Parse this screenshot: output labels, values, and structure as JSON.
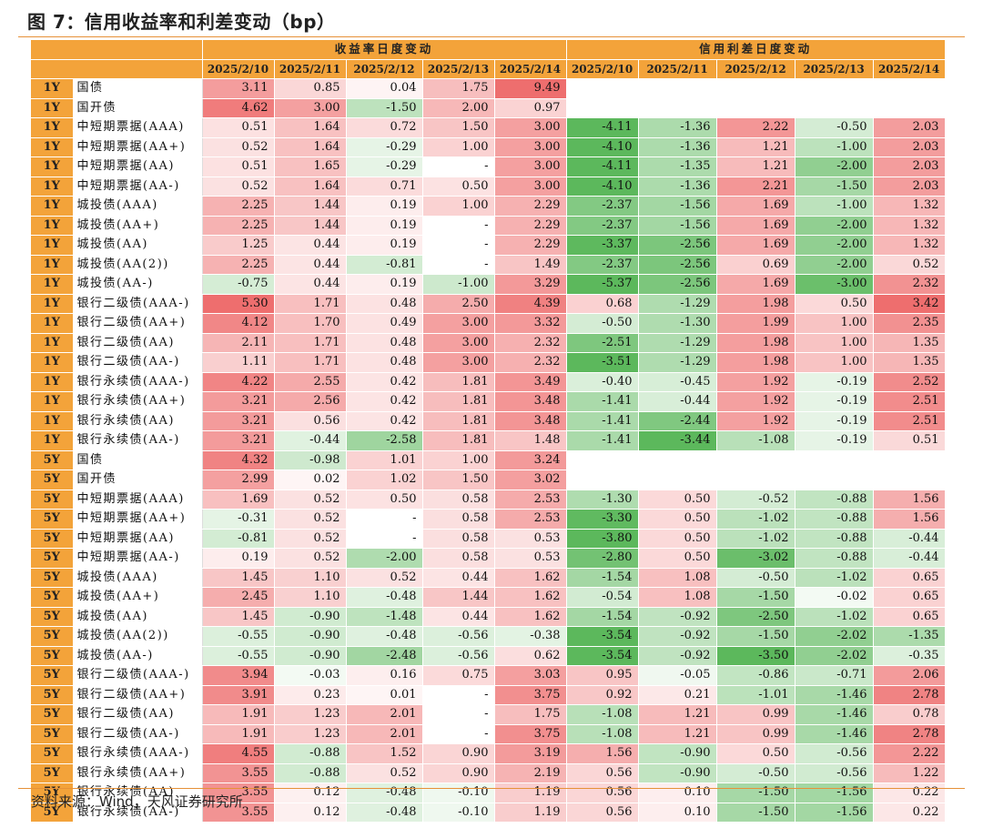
{
  "title": "图 7：信用收益率和利差变动（bp）",
  "source": "资料来源：Wind，天风证券研究所",
  "headers": {
    "yield_group": "收益率日度变动",
    "spread_group": "信用利差日度变动",
    "dates": [
      "2025/2/10",
      "2025/2/11",
      "2025/2/12",
      "2025/2/13",
      "2025/2/14"
    ]
  },
  "rows": [
    {
      "tenor": "1Y",
      "name": "国债",
      "yields": [
        "3.11",
        "0.85",
        "0.04",
        "1.75",
        "9.49"
      ],
      "spreads": [
        "",
        "",
        "",
        "",
        ""
      ],
      "group_start": true
    },
    {
      "tenor": "1Y",
      "name": "国开债",
      "yields": [
        "4.62",
        "3.00",
        "-1.50",
        "2.00",
        "0.97"
      ],
      "spreads": [
        "",
        "",
        "",
        "",
        ""
      ]
    },
    {
      "tenor": "1Y",
      "name": "中短期票据(AAA)",
      "yields": [
        "0.51",
        "1.64",
        "0.72",
        "1.50",
        "3.00"
      ],
      "spreads": [
        "-4.11",
        "-1.36",
        "2.22",
        "-0.50",
        "2.03"
      ],
      "group_start": true
    },
    {
      "tenor": "1Y",
      "name": "中短期票据(AA+)",
      "yields": [
        "0.52",
        "1.64",
        "-0.29",
        "1.00",
        "3.00"
      ],
      "spreads": [
        "-4.10",
        "-1.36",
        "1.21",
        "-1.00",
        "2.03"
      ]
    },
    {
      "tenor": "1Y",
      "name": "中短期票据(AA)",
      "yields": [
        "0.51",
        "1.65",
        "-0.29",
        "-",
        "3.00"
      ],
      "spreads": [
        "-4.11",
        "-1.35",
        "1.21",
        "-2.00",
        "2.03"
      ]
    },
    {
      "tenor": "1Y",
      "name": "中短期票据(AA-)",
      "yields": [
        "0.52",
        "1.64",
        "0.71",
        "0.50",
        "3.00"
      ],
      "spreads": [
        "-4.10",
        "-1.36",
        "2.21",
        "-1.50",
        "2.03"
      ]
    },
    {
      "tenor": "1Y",
      "name": "城投债(AAA)",
      "yields": [
        "2.25",
        "1.44",
        "0.19",
        "1.00",
        "2.29"
      ],
      "spreads": [
        "-2.37",
        "-1.56",
        "1.69",
        "-1.00",
        "1.32"
      ],
      "group_start": true
    },
    {
      "tenor": "1Y",
      "name": "城投债(AA+)",
      "yields": [
        "2.25",
        "1.44",
        "0.19",
        "-",
        "2.29"
      ],
      "spreads": [
        "-2.37",
        "-1.56",
        "1.69",
        "-2.00",
        "1.32"
      ]
    },
    {
      "tenor": "1Y",
      "name": "城投债(AA)",
      "yields": [
        "1.25",
        "0.44",
        "0.19",
        "-",
        "2.29"
      ],
      "spreads": [
        "-3.37",
        "-2.56",
        "1.69",
        "-2.00",
        "1.32"
      ]
    },
    {
      "tenor": "1Y",
      "name": "城投债(AA(2))",
      "yields": [
        "2.25",
        "0.44",
        "-0.81",
        "-",
        "1.49"
      ],
      "spreads": [
        "-2.37",
        "-2.56",
        "0.69",
        "-2.00",
        "0.52"
      ]
    },
    {
      "tenor": "1Y",
      "name": "城投债(AA-)",
      "yields": [
        "-0.75",
        "0.44",
        "0.19",
        "-1.00",
        "3.29"
      ],
      "spreads": [
        "-5.37",
        "-2.56",
        "1.69",
        "-3.00",
        "2.32"
      ]
    },
    {
      "tenor": "1Y",
      "name": "银行二级债(AAA-)",
      "yields": [
        "5.30",
        "1.71",
        "0.48",
        "2.50",
        "4.39"
      ],
      "spreads": [
        "0.68",
        "-1.29",
        "1.98",
        "0.50",
        "3.42"
      ],
      "group_start": true
    },
    {
      "tenor": "1Y",
      "name": "银行二级债(AA+)",
      "yields": [
        "4.12",
        "1.70",
        "0.49",
        "3.00",
        "3.32"
      ],
      "spreads": [
        "-0.50",
        "-1.30",
        "1.99",
        "1.00",
        "2.35"
      ]
    },
    {
      "tenor": "1Y",
      "name": "银行二级债(AA)",
      "yields": [
        "2.11",
        "1.71",
        "0.48",
        "3.00",
        "2.32"
      ],
      "spreads": [
        "-2.51",
        "-1.29",
        "1.98",
        "1.00",
        "1.35"
      ]
    },
    {
      "tenor": "1Y",
      "name": "银行二级债(AA-)",
      "yields": [
        "1.11",
        "1.71",
        "0.48",
        "3.00",
        "2.32"
      ],
      "spreads": [
        "-3.51",
        "-1.29",
        "1.98",
        "1.00",
        "1.35"
      ]
    },
    {
      "tenor": "1Y",
      "name": "银行永续债(AAA-)",
      "yields": [
        "4.22",
        "2.55",
        "0.42",
        "1.81",
        "3.49"
      ],
      "spreads": [
        "-0.40",
        "-0.45",
        "1.92",
        "-0.19",
        "2.52"
      ],
      "group_start": true
    },
    {
      "tenor": "1Y",
      "name": "银行永续债(AA+)",
      "yields": [
        "3.21",
        "2.56",
        "0.42",
        "1.81",
        "3.48"
      ],
      "spreads": [
        "-1.41",
        "-0.44",
        "1.92",
        "-0.19",
        "2.51"
      ]
    },
    {
      "tenor": "1Y",
      "name": "银行永续债(AA)",
      "yields": [
        "3.21",
        "0.56",
        "0.42",
        "1.81",
        "3.48"
      ],
      "spreads": [
        "-1.41",
        "-2.44",
        "1.92",
        "-0.19",
        "2.51"
      ]
    },
    {
      "tenor": "1Y",
      "name": "银行永续债(AA-)",
      "yields": [
        "3.21",
        "-0.44",
        "-2.58",
        "1.81",
        "1.48"
      ],
      "spreads": [
        "-1.41",
        "-3.44",
        "-1.08",
        "-0.19",
        "0.51"
      ]
    },
    {
      "tenor": "5Y",
      "name": "国债",
      "yields": [
        "4.32",
        "-0.98",
        "1.01",
        "1.00",
        "3.24"
      ],
      "spreads": [
        "",
        "",
        "",
        "",
        ""
      ],
      "group_start": true
    },
    {
      "tenor": "5Y",
      "name": "国开债",
      "yields": [
        "2.99",
        "0.02",
        "1.02",
        "1.50",
        "3.02"
      ],
      "spreads": [
        "",
        "",
        "",
        "",
        ""
      ]
    },
    {
      "tenor": "5Y",
      "name": "中短期票据(AAA)",
      "yields": [
        "1.69",
        "0.52",
        "0.50",
        "0.58",
        "2.53"
      ],
      "spreads": [
        "-1.30",
        "0.50",
        "-0.52",
        "-0.88",
        "1.56"
      ],
      "group_start": true
    },
    {
      "tenor": "5Y",
      "name": "中短期票据(AA+)",
      "yields": [
        "-0.31",
        "0.52",
        "-",
        "0.58",
        "2.53"
      ],
      "spreads": [
        "-3.30",
        "0.50",
        "-1.02",
        "-0.88",
        "1.56"
      ]
    },
    {
      "tenor": "5Y",
      "name": "中短期票据(AA)",
      "yields": [
        "-0.81",
        "0.52",
        "-",
        "0.58",
        "0.53"
      ],
      "spreads": [
        "-3.80",
        "0.50",
        "-1.02",
        "-0.88",
        "-0.44"
      ]
    },
    {
      "tenor": "5Y",
      "name": "中短期票据(AA-)",
      "yields": [
        "0.19",
        "0.52",
        "-2.00",
        "0.58",
        "0.53"
      ],
      "spreads": [
        "-2.80",
        "0.50",
        "-3.02",
        "-0.88",
        "-0.44"
      ]
    },
    {
      "tenor": "5Y",
      "name": "城投债(AAA)",
      "yields": [
        "1.45",
        "1.10",
        "0.52",
        "0.44",
        "1.62"
      ],
      "spreads": [
        "-1.54",
        "1.08",
        "-0.50",
        "-1.02",
        "0.65"
      ],
      "group_start": true
    },
    {
      "tenor": "5Y",
      "name": "城投债(AA+)",
      "yields": [
        "2.45",
        "1.10",
        "-0.48",
        "1.44",
        "1.62"
      ],
      "spreads": [
        "-0.54",
        "1.08",
        "-1.50",
        "-0.02",
        "0.65"
      ]
    },
    {
      "tenor": "5Y",
      "name": "城投债(AA)",
      "yields": [
        "1.45",
        "-0.90",
        "-1.48",
        "0.44",
        "1.62"
      ],
      "spreads": [
        "-1.54",
        "-0.92",
        "-2.50",
        "-1.02",
        "0.65"
      ]
    },
    {
      "tenor": "5Y",
      "name": "城投债(AA(2))",
      "yields": [
        "-0.55",
        "-0.90",
        "-0.48",
        "-0.56",
        "-0.38"
      ],
      "spreads": [
        "-3.54",
        "-0.92",
        "-1.50",
        "-2.02",
        "-1.35"
      ]
    },
    {
      "tenor": "5Y",
      "name": "城投债(AA-)",
      "yields": [
        "-0.55",
        "-0.90",
        "-2.48",
        "-0.56",
        "0.62"
      ],
      "spreads": [
        "-3.54",
        "-0.92",
        "-3.50",
        "-2.02",
        "-0.35"
      ]
    },
    {
      "tenor": "5Y",
      "name": "银行二级债(AAA-)",
      "yields": [
        "3.94",
        "-0.03",
        "0.16",
        "0.75",
        "3.03"
      ],
      "spreads": [
        "0.95",
        "-0.05",
        "-0.86",
        "-0.71",
        "2.06"
      ],
      "group_start": true
    },
    {
      "tenor": "5Y",
      "name": "银行二级债(AA+)",
      "yields": [
        "3.91",
        "0.23",
        "0.01",
        "-",
        "3.75"
      ],
      "spreads": [
        "0.92",
        "0.21",
        "-1.01",
        "-1.46",
        "2.78"
      ]
    },
    {
      "tenor": "5Y",
      "name": "银行二级债(AA)",
      "yields": [
        "1.91",
        "1.23",
        "2.01",
        "-",
        "1.75"
      ],
      "spreads": [
        "-1.08",
        "1.21",
        "0.99",
        "-1.46",
        "0.78"
      ]
    },
    {
      "tenor": "5Y",
      "name": "银行二级债(AA-)",
      "yields": [
        "1.91",
        "1.23",
        "2.01",
        "-",
        "3.75"
      ],
      "spreads": [
        "-1.08",
        "1.21",
        "0.99",
        "-1.46",
        "2.78"
      ]
    },
    {
      "tenor": "5Y",
      "name": "银行永续债(AAA-)",
      "yields": [
        "4.55",
        "-0.88",
        "1.52",
        "0.90",
        "3.19"
      ],
      "spreads": [
        "1.56",
        "-0.90",
        "0.50",
        "-0.56",
        "2.22"
      ],
      "group_start": true
    },
    {
      "tenor": "5Y",
      "name": "银行永续债(AA+)",
      "yields": [
        "3.55",
        "-0.88",
        "0.52",
        "0.90",
        "2.19"
      ],
      "spreads": [
        "0.56",
        "-0.90",
        "-0.50",
        "-0.56",
        "1.22"
      ]
    },
    {
      "tenor": "5Y",
      "name": "银行永续债(AA)",
      "yields": [
        "3.55",
        "0.12",
        "-0.48",
        "-0.10",
        "1.19"
      ],
      "spreads": [
        "0.56",
        "0.10",
        "-1.50",
        "-1.56",
        "0.22"
      ]
    },
    {
      "tenor": "5Y",
      "name": "银行永续债(AA-)",
      "yields": [
        "3.55",
        "0.12",
        "-0.48",
        "-0.10",
        "1.19"
      ],
      "spreads": [
        "0.56",
        "0.10",
        "-1.50",
        "-1.56",
        "0.22"
      ]
    }
  ],
  "colors": {
    "header": "#f3a33a",
    "rule": "#e69138",
    "positive": "#ee6e6e",
    "negative": "#5cb85c"
  }
}
